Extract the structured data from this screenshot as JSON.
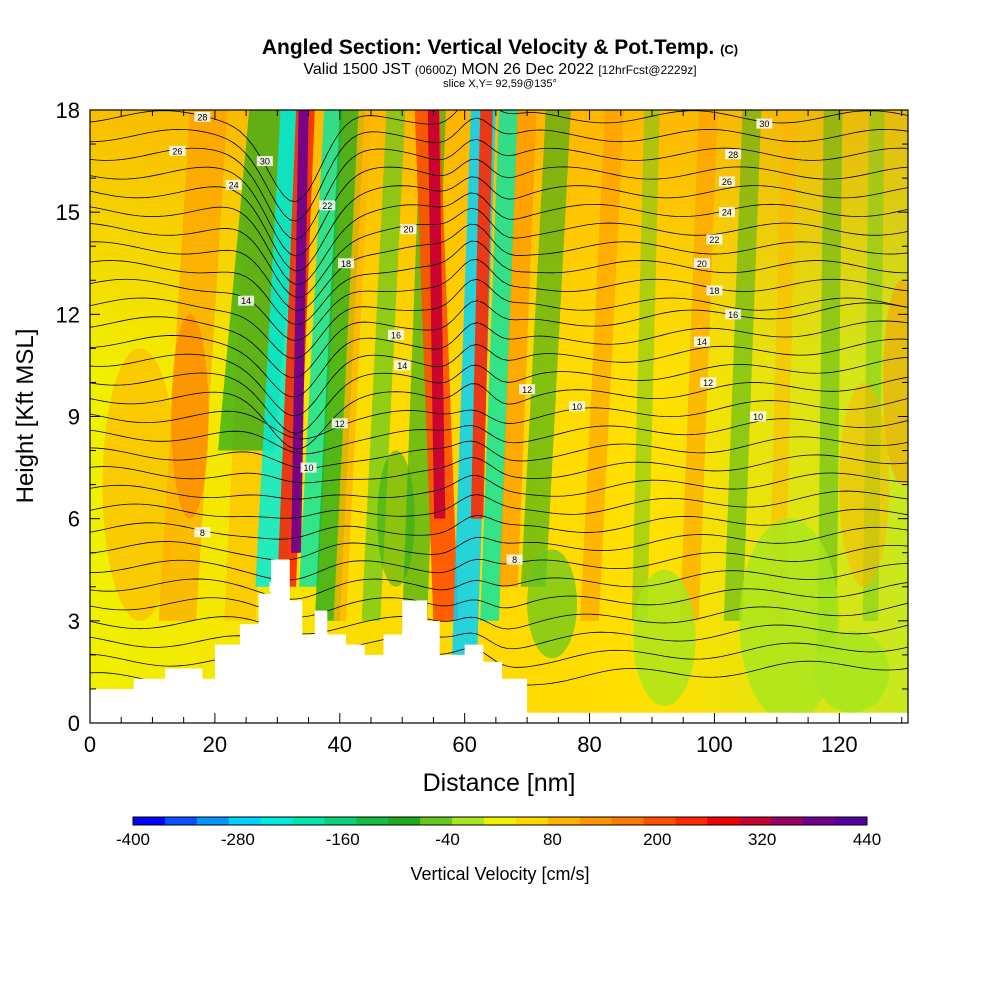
{
  "chart_data": {
    "type": "heatmap",
    "title": "Angled Section: Vertical Velocity & Pot.Temp.",
    "title_tag": "(C)",
    "subtitle_a": "Valid 1500 JST",
    "subtitle_b": "(0600Z)",
    "subtitle_c": "MON 26 Dec 2022",
    "subtitle_d": "[12hrFcst@2229z]",
    "slice_label": "slice X,Y= 92,59@135°",
    "xlabel": "Distance [nm]",
    "ylabel": "Height [Kft MSL]",
    "xlim": [
      0,
      131
    ],
    "ylim": [
      0,
      18
    ],
    "x_ticks": [
      "0",
      "20",
      "40",
      "60",
      "80",
      "100",
      "120"
    ],
    "x_tick_values": [
      0,
      20,
      40,
      60,
      80,
      100,
      120
    ],
    "y_ticks": [
      "0",
      "3",
      "6",
      "9",
      "12",
      "15",
      "18"
    ],
    "y_tick_values": [
      0,
      3,
      6,
      9,
      12,
      15,
      18
    ],
    "colorbar": {
      "label": "Vertical Velocity [cm/s]",
      "tick_labels": [
        "-400",
        "-280",
        "-160",
        "-40",
        "80",
        "200",
        "320",
        "440"
      ],
      "tick_values": [
        -400,
        -280,
        -160,
        -40,
        80,
        200,
        320,
        440
      ],
      "colors": [
        "#0000ff",
        "#0a50ff",
        "#0096ff",
        "#00d2ff",
        "#00ebdc",
        "#00e6aa",
        "#0ad278",
        "#14be46",
        "#1eaa1e",
        "#64c81e",
        "#a8e61e",
        "#f0f000",
        "#ffd700",
        "#ffb400",
        "#ff9600",
        "#ff7800",
        "#ff5000",
        "#ff2800",
        "#f00000",
        "#c80032",
        "#9b0064",
        "#73008c",
        "#5500a0"
      ]
    },
    "contour_labels": [
      "8",
      "10",
      "12",
      "14",
      "16",
      "18",
      "20",
      "22",
      "24",
      "26",
      "28",
      "30"
    ],
    "terrain": [
      [
        0,
        1
      ],
      [
        7,
        1
      ],
      [
        7,
        1.3
      ],
      [
        12,
        1.3
      ],
      [
        12,
        1.6
      ],
      [
        18,
        1.6
      ],
      [
        18,
        1.3
      ],
      [
        20,
        1.3
      ],
      [
        20,
        2.3
      ],
      [
        24,
        2.3
      ],
      [
        24,
        2.9
      ],
      [
        27,
        2.9
      ],
      [
        27,
        3.8
      ],
      [
        29,
        3.8
      ],
      [
        29,
        4.8
      ],
      [
        32,
        4.8
      ],
      [
        32,
        3.6
      ],
      [
        34,
        3.6
      ],
      [
        34,
        2.6
      ],
      [
        36,
        2.6
      ],
      [
        36,
        3.3
      ],
      [
        38,
        3.3
      ],
      [
        38,
        2.6
      ],
      [
        41,
        2.6
      ],
      [
        41,
        2.3
      ],
      [
        44,
        2.3
      ],
      [
        44,
        2.0
      ],
      [
        47,
        2.0
      ],
      [
        47,
        2.6
      ],
      [
        50,
        2.6
      ],
      [
        50,
        3.6
      ],
      [
        54,
        3.6
      ],
      [
        54,
        3.0
      ],
      [
        56,
        3.0
      ],
      [
        56,
        2.0
      ],
      [
        60,
        2.0
      ],
      [
        60,
        2.3
      ],
      [
        63,
        2.3
      ],
      [
        63,
        1.8
      ],
      [
        66,
        1.8
      ],
      [
        66,
        1.3
      ],
      [
        70,
        1.3
      ],
      [
        70,
        0.3
      ],
      [
        131,
        0.3
      ]
    ]
  }
}
